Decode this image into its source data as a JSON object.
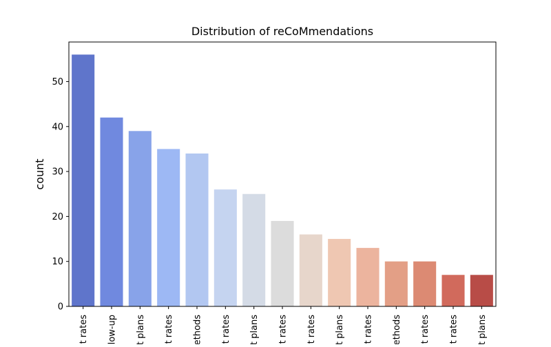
{
  "chart_data": {
    "type": "bar",
    "title": "Distribution of reCoMmendations",
    "xlabel": "",
    "ylabel": "count",
    "categories": [
      "t rates",
      "llow-up",
      "t plans",
      "t rates",
      "ethods",
      "t rates",
      "t plans",
      "t rates",
      "t rates",
      "t plans",
      "t rates",
      "ethods",
      "t rates",
      "t rates",
      "t plans"
    ],
    "values": [
      56,
      42,
      39,
      35,
      34,
      26,
      25,
      19,
      16,
      15,
      13,
      10,
      10,
      7,
      7
    ],
    "colors": [
      "#5f75cb",
      "#7089df",
      "#88a3e9",
      "#9db8f4",
      "#b2c7f1",
      "#c5d4f0",
      "#d4dbe6",
      "#dcdcdc",
      "#e7d6cb",
      "#efc7b2",
      "#ecb49e",
      "#e39f86",
      "#dc8a73",
      "#d16a5c",
      "#b84c47"
    ],
    "yticks": [
      0,
      10,
      20,
      30,
      40,
      50
    ],
    "ylim": [
      0,
      58.8
    ],
    "grid": false,
    "legend": "none"
  }
}
